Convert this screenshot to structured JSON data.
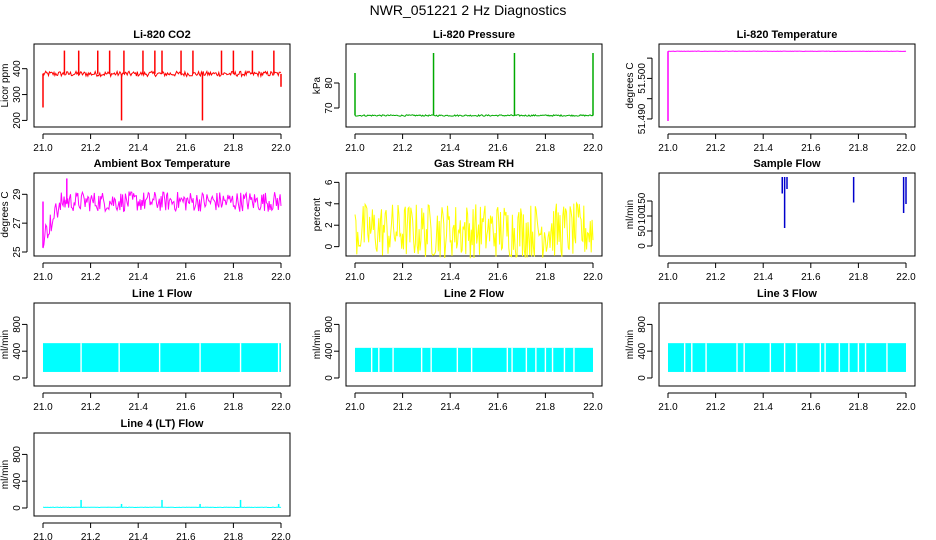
{
  "title": "NWR_051221  2 Hz Diagnostics",
  "colors": {
    "red": "#ff0000",
    "green": "#00aa00",
    "magenta": "#ff00ff",
    "yellow": "#ffff00",
    "blue": "#0000cc",
    "cyan": "#00ffff"
  },
  "chart_data": [
    {
      "type": "line",
      "title": "Li-820 CO2",
      "xlabel": "",
      "ylabel": "Licor ppm",
      "xlim": [
        21.0,
        22.0
      ],
      "ylim": [
        190,
        480
      ],
      "xticks": [
        21.0,
        21.2,
        21.4,
        21.6,
        21.8,
        22.0
      ],
      "yticks": [
        200,
        300,
        400
      ],
      "color": "red",
      "baseline": 380,
      "noise": 10,
      "spikes": [
        {
          "x": 21.0,
          "y": 250
        },
        {
          "x": 21.09,
          "y": 470
        },
        {
          "x": 21.15,
          "y": 470
        },
        {
          "x": 21.23,
          "y": 470
        },
        {
          "x": 21.28,
          "y": 470
        },
        {
          "x": 21.33,
          "y": 200
        },
        {
          "x": 21.34,
          "y": 470
        },
        {
          "x": 21.42,
          "y": 470
        },
        {
          "x": 21.47,
          "y": 470
        },
        {
          "x": 21.5,
          "y": 470
        },
        {
          "x": 21.58,
          "y": 470
        },
        {
          "x": 21.63,
          "y": 470
        },
        {
          "x": 21.67,
          "y": 200
        },
        {
          "x": 21.75,
          "y": 470
        },
        {
          "x": 21.8,
          "y": 470
        },
        {
          "x": 21.88,
          "y": 470
        },
        {
          "x": 21.97,
          "y": 470
        },
        {
          "x": 22.0,
          "y": 330
        }
      ]
    },
    {
      "type": "line",
      "title": "Li-820 Pressure",
      "xlabel": "",
      "ylabel": "kPa",
      "xlim": [
        21.0,
        22.0
      ],
      "ylim": [
        64,
        94
      ],
      "xticks": [
        21.0,
        21.2,
        21.4,
        21.6,
        21.8,
        22.0
      ],
      "yticks": [
        70,
        80
      ],
      "color": "green",
      "baseline": 67,
      "noise": 0.3,
      "spikes": [
        {
          "x": 21.0,
          "y": 84
        },
        {
          "x": 21.33,
          "y": 92
        },
        {
          "x": 21.67,
          "y": 92
        },
        {
          "x": 22.0,
          "y": 92
        }
      ]
    },
    {
      "type": "line",
      "title": "Li-820 Temperature",
      "xlabel": "",
      "ylabel": "degrees C",
      "xlim": [
        21.0,
        22.0
      ],
      "ylim": [
        51.489,
        51.5075
      ],
      "xticks": [
        21.0,
        21.2,
        21.4,
        21.6,
        21.8,
        22.0
      ],
      "yticks": [
        51.49,
        51.495,
        51.5,
        51.505
      ],
      "ytick_labels": [
        "51.490",
        "",
        "51.500",
        ""
      ],
      "color": "magenta",
      "baseline": 51.5067,
      "noise": 5e-05,
      "spikes": [
        {
          "x": 21.0,
          "y": 51.4895
        }
      ]
    },
    {
      "type": "line",
      "title": "Ambient Box Temperature",
      "xlabel": "",
      "ylabel": "degrees C",
      "xlim": [
        21.0,
        22.0
      ],
      "ylim": [
        25,
        30.2
      ],
      "xticks": [
        21.0,
        21.2,
        21.4,
        21.6,
        21.8,
        22.0
      ],
      "yticks": [
        25,
        27,
        29
      ],
      "color": "magenta",
      "baseline": 28.5,
      "noise": 0.7,
      "spikes": [
        {
          "x": 21.0,
          "y": 25.3
        },
        {
          "x": 21.1,
          "y": 30.1
        }
      ]
    },
    {
      "type": "line",
      "title": "Gas Stream RH",
      "xlabel": "",
      "ylabel": "percent",
      "xlim": [
        21.0,
        22.0
      ],
      "ylim": [
        -0.5,
        6.5
      ],
      "xticks": [
        21.0,
        21.2,
        21.4,
        21.6,
        21.8,
        22.0
      ],
      "yticks": [
        0,
        2,
        4,
        6
      ],
      "color": "yellow",
      "baseline": 1.5,
      "noise": 2.6,
      "spikes": []
    },
    {
      "type": "line",
      "title": "Sample Flow",
      "xlabel": "",
      "ylabel": "ml/min",
      "xlim": [
        21.0,
        22.0
      ],
      "ylim": [
        -20,
        230
      ],
      "xticks": [
        21.0,
        21.2,
        21.4,
        21.6,
        21.8,
        22.0
      ],
      "yticks": [
        0,
        50,
        100,
        150
      ],
      "color": "blue",
      "baseline": null,
      "noise": 0,
      "spikes": [
        {
          "x": 21.48,
          "y": 175
        },
        {
          "x": 21.49,
          "y": 60
        },
        {
          "x": 21.5,
          "y": 190
        },
        {
          "x": 21.78,
          "y": 145
        },
        {
          "x": 21.99,
          "y": 110
        },
        {
          "x": 22.0,
          "y": 140
        }
      ]
    },
    {
      "type": "area",
      "title": "Line 1 Flow",
      "xlabel": "",
      "ylabel": "ml/min",
      "xlim": [
        21.0,
        22.0
      ],
      "ylim": [
        -60,
        1060
      ],
      "xticks": [
        21.0,
        21.2,
        21.4,
        21.6,
        21.8,
        22.0
      ],
      "yticks": [
        0,
        400,
        800
      ],
      "color": "cyan",
      "low": 90,
      "high": 520,
      "gaps": [
        21.16,
        21.32,
        21.49,
        21.66,
        21.83,
        21.99
      ]
    },
    {
      "type": "area",
      "title": "Line 2 Flow",
      "xlabel": "",
      "ylabel": "ml/min",
      "xlim": [
        21.0,
        22.0
      ],
      "ylim": [
        -60,
        1060
      ],
      "xticks": [
        21.0,
        21.2,
        21.4,
        21.6,
        21.8,
        22.0
      ],
      "yticks": [
        0,
        400,
        800
      ],
      "color": "cyan",
      "low": 90,
      "high": 450,
      "gaps": [
        21.07,
        21.1,
        21.16,
        21.28,
        21.32,
        21.43,
        21.49,
        21.64,
        21.66,
        21.72,
        21.76,
        21.8,
        21.83,
        21.88,
        21.92
      ]
    },
    {
      "type": "area",
      "title": "Line 3 Flow",
      "xlabel": "",
      "ylabel": "ml/min",
      "xlim": [
        21.0,
        22.0
      ],
      "ylim": [
        -60,
        1060
      ],
      "xticks": [
        21.0,
        21.2,
        21.4,
        21.6,
        21.8,
        22.0
      ],
      "yticks": [
        0,
        400,
        800
      ],
      "color": "cyan",
      "low": 90,
      "high": 520,
      "gaps": [
        21.07,
        21.1,
        21.16,
        21.29,
        21.32,
        21.43,
        21.49,
        21.54,
        21.64,
        21.66,
        21.72,
        21.76,
        21.8,
        21.83,
        21.92
      ]
    },
    {
      "type": "line",
      "title": "Line 4 (LT) Flow",
      "xlabel": "",
      "ylabel": "ml/min",
      "xlim": [
        21.0,
        22.0
      ],
      "ylim": [
        -60,
        1060
      ],
      "xticks": [
        21.0,
        21.2,
        21.4,
        21.6,
        21.8,
        22.0
      ],
      "yticks": [
        0,
        400,
        800
      ],
      "color": "cyan",
      "baseline": 10,
      "noise": 3,
      "spikes": [
        {
          "x": 21.16,
          "y": 120
        },
        {
          "x": 21.33,
          "y": 60
        },
        {
          "x": 21.5,
          "y": 120
        },
        {
          "x": 21.66,
          "y": 60
        },
        {
          "x": 21.83,
          "y": 120
        },
        {
          "x": 21.99,
          "y": 60
        }
      ]
    }
  ]
}
